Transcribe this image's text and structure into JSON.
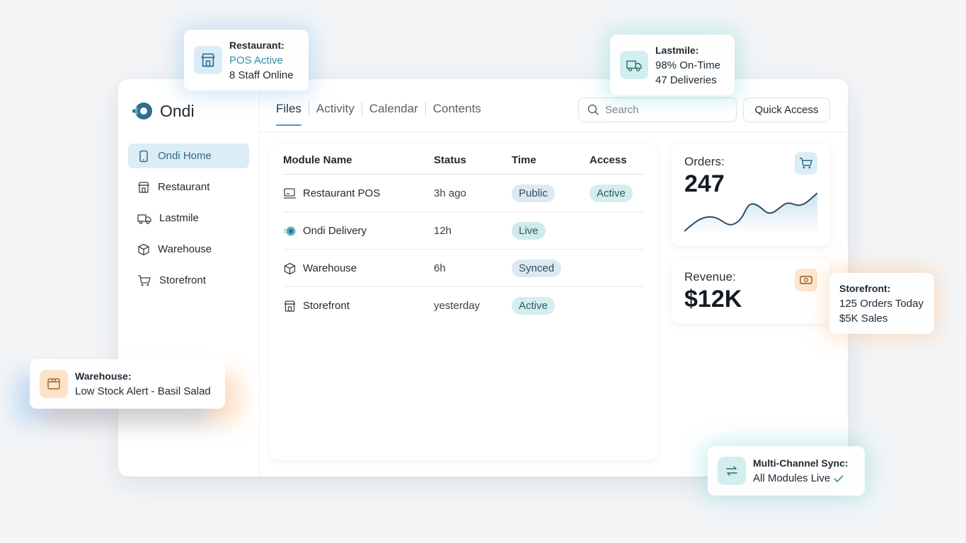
{
  "app": {
    "name": "Ondi"
  },
  "sidebar": {
    "items": [
      {
        "label": "Ondi Home",
        "icon": "phone-icon",
        "active": true
      },
      {
        "label": "Restaurant",
        "icon": "storefront-icon"
      },
      {
        "label": "Lastmile",
        "icon": "truck-icon"
      },
      {
        "label": "Warehouse",
        "icon": "box-icon"
      },
      {
        "label": "Storefront",
        "icon": "cart-icon"
      }
    ]
  },
  "header": {
    "tabs": [
      "Files",
      "Activity",
      "Calendar",
      "Contents"
    ],
    "active_tab": "Files",
    "search_placeholder": "Search",
    "quick_access_label": "Quick Access"
  },
  "table": {
    "columns": [
      "Module Name",
      "Status",
      "Time",
      "Access"
    ],
    "rows": [
      {
        "name": "Restaurant POS",
        "icon": "pos-terminal-icon",
        "time": "3h ago",
        "status": "Public",
        "access": "Active"
      },
      {
        "name": "Ondi Delivery",
        "icon": "delivery-icon",
        "time": "12h",
        "status": "Live",
        "access": ""
      },
      {
        "name": "Warehouse",
        "icon": "box-icon",
        "time": "6h",
        "status": "Synced",
        "access": ""
      },
      {
        "name": "Storefront",
        "icon": "storefront-icon",
        "time": "yesterday",
        "status": "Active",
        "access": ""
      }
    ]
  },
  "stats": {
    "orders": {
      "label": "Orders:",
      "value": "247",
      "icon": "cart-icon"
    },
    "revenue": {
      "label": "Revenue:",
      "value": "$12K",
      "icon": "cash-icon"
    }
  },
  "floating_cards": {
    "restaurant": {
      "title": "Restaurant:",
      "line1": "POS Active",
      "line2": "8 Staff Online",
      "icon": "storefront-icon"
    },
    "lastmile": {
      "title": "Lastmile:",
      "line1": "98% On-Time",
      "line2": "47 Deliveries",
      "icon": "truck-icon"
    },
    "storefront": {
      "title": "Storefront:",
      "line1": "125 Orders Today",
      "line2": "$5K Sales"
    },
    "warehouse": {
      "title": "Warehouse:",
      "line1": "Low Stock Alert - Basil Salad",
      "icon": "box-icon"
    },
    "sync": {
      "title": "Multi-Channel Sync:",
      "line1": "All Modules Live",
      "icon": "sync-arrows-icon"
    }
  },
  "colors": {
    "accent": "#5a9ab8",
    "active_nav_bg": "#dcedf6",
    "teal_pill": "#d4edee",
    "blue_pill": "#dce9f2"
  }
}
